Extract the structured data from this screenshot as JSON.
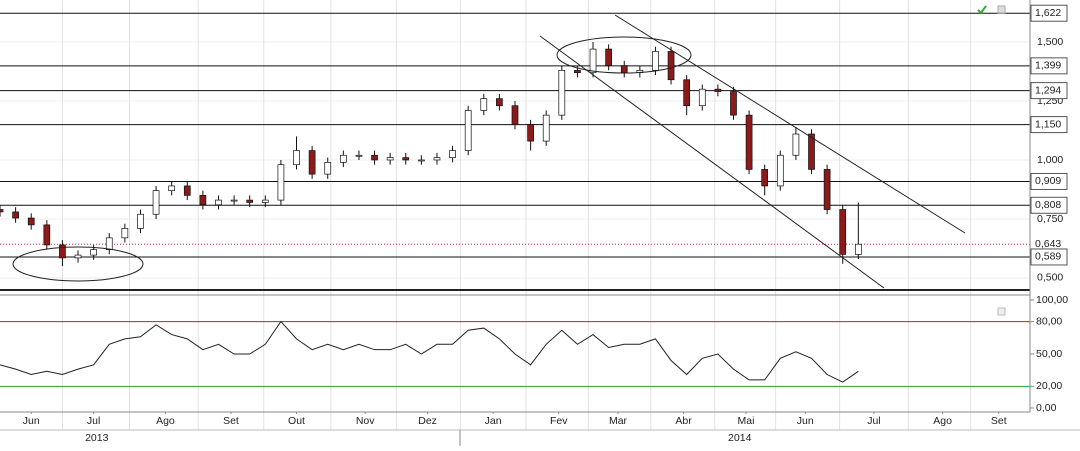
{
  "chart_data": [
    {
      "type": "candlestick",
      "x": [
        0,
        5,
        10,
        15,
        20,
        25,
        30,
        35,
        40,
        45,
        50,
        55,
        60,
        65,
        70,
        75,
        80,
        85,
        90,
        95,
        100,
        105,
        110,
        115,
        120,
        125,
        130,
        135,
        140,
        145,
        150,
        155,
        160,
        165,
        170,
        175,
        180,
        185,
        190,
        195,
        200,
        205,
        210,
        215,
        220,
        225,
        230,
        235,
        240,
        245,
        250,
        255,
        260,
        265,
        270,
        275
      ],
      "open": [
        0.79,
        0.78,
        0.754,
        0.725,
        0.64,
        0.585,
        0.597,
        0.62,
        0.67,
        0.71,
        0.77,
        0.87,
        0.89,
        0.85,
        0.81,
        0.83,
        0.83,
        0.82,
        0.83,
        0.98,
        1.04,
        0.94,
        0.99,
        1.02,
        1.02,
        1.0,
        1.01,
        1.0,
        1.0,
        1.01,
        1.04,
        1.21,
        1.26,
        1.23,
        1.15,
        1.08,
        1.19,
        1.38,
        1.37,
        1.47,
        1.4,
        1.37,
        1.38,
        1.46,
        1.34,
        1.23,
        1.3,
        1.29,
        1.19,
        0.96,
        0.89,
        1.02,
        1.11,
        0.96,
        0.79,
        0.6
      ],
      "high": [
        0.81,
        0.8,
        0.774,
        0.745,
        0.66,
        0.617,
        0.64,
        0.69,
        0.73,
        0.79,
        0.89,
        0.91,
        0.91,
        0.87,
        0.85,
        0.85,
        0.85,
        0.85,
        1.0,
        1.1,
        1.06,
        1.01,
        1.04,
        1.04,
        1.04,
        1.03,
        1.03,
        1.02,
        1.03,
        1.06,
        1.23,
        1.28,
        1.28,
        1.25,
        1.17,
        1.21,
        1.4,
        1.4,
        1.5,
        1.49,
        1.42,
        1.4,
        1.48,
        1.48,
        1.36,
        1.32,
        1.32,
        1.31,
        1.21,
        0.98,
        1.04,
        1.14,
        1.13,
        0.98,
        0.81,
        0.82
      ],
      "low": [
        0.76,
        0.734,
        0.705,
        0.62,
        0.55,
        0.565,
        0.577,
        0.6,
        0.65,
        0.69,
        0.75,
        0.85,
        0.83,
        0.79,
        0.79,
        0.81,
        0.8,
        0.8,
        0.81,
        0.96,
        0.92,
        0.92,
        0.97,
        1.0,
        0.98,
        0.98,
        0.98,
        0.98,
        0.98,
        0.99,
        1.02,
        1.19,
        1.21,
        1.13,
        1.04,
        1.06,
        1.17,
        1.35,
        1.35,
        1.38,
        1.35,
        1.35,
        1.36,
        1.32,
        1.19,
        1.21,
        1.27,
        1.17,
        0.94,
        0.85,
        0.87,
        1.0,
        0.94,
        0.77,
        0.56,
        0.58
      ],
      "close": [
        0.78,
        0.754,
        0.725,
        0.64,
        0.585,
        0.597,
        0.62,
        0.67,
        0.71,
        0.77,
        0.87,
        0.89,
        0.85,
        0.81,
        0.83,
        0.83,
        0.82,
        0.83,
        0.98,
        1.04,
        0.94,
        0.99,
        1.02,
        1.02,
        1.0,
        1.01,
        1.0,
        1.0,
        1.01,
        1.04,
        1.21,
        1.26,
        1.23,
        1.15,
        1.08,
        1.19,
        1.38,
        1.37,
        1.47,
        1.4,
        1.37,
        1.38,
        1.46,
        1.34,
        1.23,
        1.3,
        1.29,
        1.19,
        0.96,
        0.89,
        1.02,
        1.11,
        0.96,
        0.79,
        0.6,
        0.643
      ],
      "up_color": "#ffffff",
      "down_color": "#8b1a1a",
      "xlim": [
        0,
        330
      ],
      "ylim": [
        0.449,
        1.678
      ],
      "yticks": [
        {
          "value": 1.5,
          "label": "1,500"
        },
        {
          "value": 1.25,
          "label": "1,250"
        },
        {
          "value": 1.0,
          "label": "1,000"
        },
        {
          "value": 0.75,
          "label": "0,750"
        },
        {
          "value": 0.5,
          "label": "0,500"
        }
      ],
      "levels": [
        {
          "value": 1.622,
          "label": "1,622"
        },
        {
          "value": 1.399,
          "label": "1,399"
        },
        {
          "value": 1.294,
          "label": "1,294"
        },
        {
          "value": 1.15,
          "label": "1,150"
        },
        {
          "value": 0.909,
          "label": "0,909"
        },
        {
          "value": 0.808,
          "label": "0,808"
        },
        {
          "value": 0.589,
          "label": "0,589"
        }
      ],
      "last": {
        "value": 0.643,
        "label": "0,643"
      }
    },
    {
      "type": "line",
      "x": [
        0,
        5,
        10,
        15,
        20,
        25,
        30,
        35,
        40,
        45,
        50,
        55,
        60,
        65,
        70,
        75,
        80,
        85,
        90,
        95,
        100,
        105,
        110,
        115,
        120,
        125,
        130,
        135,
        140,
        145,
        150,
        155,
        160,
        165,
        170,
        175,
        180,
        185,
        190,
        195,
        200,
        205,
        210,
        215,
        220,
        225,
        230,
        235,
        240,
        245,
        250,
        255,
        260,
        265,
        270,
        275
      ],
      "values": [
        40,
        36,
        31,
        34,
        31,
        36,
        40,
        59,
        64,
        66,
        77,
        68,
        64,
        54,
        59,
        50,
        50,
        59,
        80,
        64,
        54,
        59,
        54,
        59,
        54,
        54,
        59,
        50,
        59,
        59,
        72,
        74,
        64,
        50,
        40,
        59,
        72,
        59,
        68,
        56,
        59,
        59,
        64,
        44,
        31,
        46,
        50,
        36,
        26,
        26,
        46,
        52,
        46,
        31,
        24,
        34
      ],
      "color": "#222222",
      "xlim": [
        0,
        330
      ],
      "ylim": [
        0,
        100
      ],
      "yticks": [
        {
          "value": 100,
          "label": "100,00"
        },
        {
          "value": 80,
          "label": "80,00"
        },
        {
          "value": 50,
          "label": "50,00"
        },
        {
          "value": 20,
          "label": "20,00"
        },
        {
          "value": 0,
          "label": "0,00"
        }
      ],
      "overbought": 80,
      "oversold": 20,
      "xticks": [
        {
          "value": 10,
          "label": "Jun"
        },
        {
          "value": 30,
          "label": "Jul"
        },
        {
          "value": 53,
          "label": "Ago"
        },
        {
          "value": 74,
          "label": "Set"
        },
        {
          "value": 95,
          "label": "Out"
        },
        {
          "value": 117,
          "label": "Nov"
        },
        {
          "value": 137,
          "label": "Dez"
        },
        {
          "value": 158,
          "label": "Jan"
        },
        {
          "value": 179,
          "label": "Fev"
        },
        {
          "value": 198,
          "label": "Mar"
        },
        {
          "value": 219,
          "label": "Abr"
        },
        {
          "value": 239,
          "label": "Mai"
        },
        {
          "value": 258,
          "label": "Jun"
        },
        {
          "value": 280,
          "label": "Jul"
        },
        {
          "value": 302,
          "label": "Ago"
        },
        {
          "value": 320,
          "label": "Set"
        }
      ],
      "years": [
        {
          "value": 31,
          "label": "2013"
        },
        {
          "value": 237,
          "label": "2014"
        }
      ]
    }
  ]
}
